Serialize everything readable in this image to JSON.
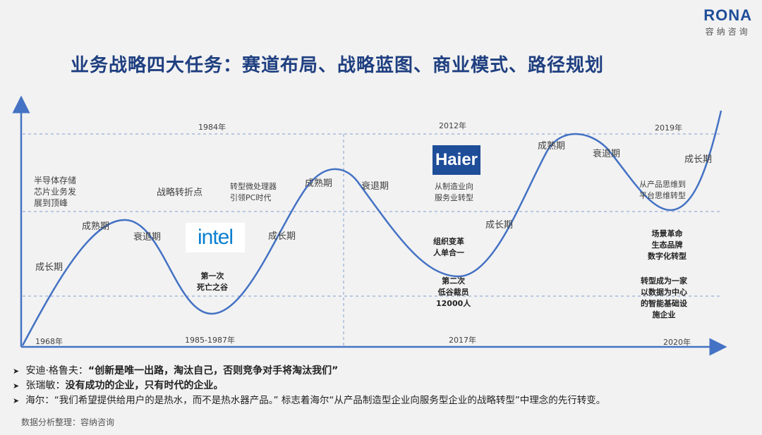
{
  "logo": {
    "word": "RONA",
    "sub": "容纳咨询"
  },
  "title": "业务战略四大任务：赛道布局、战略蓝图、商业模式、路径规划",
  "years_top": {
    "y1984": "1984年",
    "y2012": "2012年",
    "y2019": "2019年"
  },
  "years_bottom": {
    "y1968": "1968年",
    "y1985": "1985-1987年",
    "y2017": "2017年",
    "y2020": "2020年"
  },
  "phases": {
    "p1": "成长期",
    "p2": "成熟期",
    "p3": "衰退期",
    "p4": "成长期",
    "p5": "成熟期",
    "p6": "衰退期",
    "p7": "成长期",
    "p8": "成熟期",
    "p9": "衰退期",
    "p10": "成长期"
  },
  "notes": {
    "memory": [
      "半导体存储",
      "芯片业务发",
      "展到顶峰"
    ],
    "turning": "战略转折点",
    "transform": [
      "转型微处理器",
      "引领PC时代"
    ],
    "valley1": [
      "第一次",
      "死亡之谷"
    ],
    "haier_service": [
      "从制造业向",
      "服务业转型"
    ],
    "org": [
      "组织变革",
      "人单合一"
    ],
    "layoff": [
      "第二次",
      "低谷裁员",
      "12000人"
    ],
    "platform": [
      "从产品思维到",
      "平台思维转型"
    ],
    "scene": [
      "场景革命",
      "生态品牌",
      "数字化转型"
    ],
    "data_infra": [
      "转型成为一家",
      "以数据为中心",
      "的智能基础设",
      "施企业"
    ]
  },
  "brands": {
    "intel": "intel",
    "haier": "Haier"
  },
  "quotes": [
    {
      "prefix": "安迪·格鲁夫：",
      "text": "“创新是唯一出路，淘汰自己，否则竞争对手将淘汰我们”"
    },
    {
      "prefix": "张瑞敏：",
      "text": "没有成功的企业，只有时代的企业。"
    },
    {
      "prefix": "海尔：",
      "text": "“我们希望提供给用户的是热水，而不是热水器产品。” 标志着海尔“从产品制造型企业向服务型企业的战略转型”中理念的先行转变。"
    }
  ],
  "source": "数据分析整理：容纳咨询",
  "colors": {
    "axis": "#4472c4",
    "title": "#1f3f80",
    "brand": "#1f4e99",
    "intel": "#0a7fd0"
  },
  "icons": [
    "bullet-arrow-icon"
  ]
}
